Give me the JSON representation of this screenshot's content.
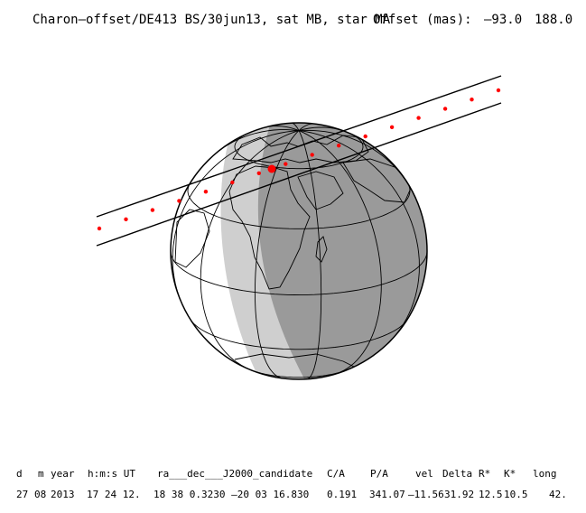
{
  "title": "Charon–offset/DE413 BS/30jun13, sat MB, star MA",
  "offset": {
    "label": "Offset (mas):",
    "values": [
      "–93.0",
      "188.0"
    ]
  },
  "colors": {
    "night": "#9a9a9a",
    "twilight": "#cfcfcf",
    "day": "#ffffff",
    "path_dot": "#ff0000",
    "line": "#000000"
  },
  "globe": {
    "center_lon": 20,
    "center_lat": 20,
    "graticule_step_deg": 30
  },
  "track": {
    "description_visible": false,
    "center_points": [
      {
        "lon": -50,
        "lat": 4
      },
      {
        "lon": -40,
        "lat": 8
      },
      {
        "lon": -30,
        "lat": 12
      },
      {
        "lon": -20,
        "lat": 16
      },
      {
        "lon": -10,
        "lat": 19
      },
      {
        "lon": 0,
        "lat": 22
      },
      {
        "lon": 10,
        "lat": 26
      },
      {
        "lon": 20,
        "lat": 30
      },
      {
        "lon": 30,
        "lat": 34
      },
      {
        "lon": 40,
        "lat": 37
      },
      {
        "lon": 50,
        "lat": 40
      },
      {
        "lon": 60,
        "lat": 43
      },
      {
        "lon": 70,
        "lat": 46
      },
      {
        "lon": 80,
        "lat": 49
      },
      {
        "lon": 90,
        "lat": 52
      },
      {
        "lon": 100,
        "lat": 55
      }
    ],
    "closest_approach": {
      "lon": 22,
      "lat": 30
    }
  },
  "table": {
    "headers": [
      "d",
      "m",
      "year",
      "h:m:s UT",
      "ra___dec___J2000_candidate",
      "C/A",
      "P/A",
      "vel",
      "Delta",
      "R*",
      "K*",
      "long"
    ],
    "values": [
      "27",
      "08",
      "2013",
      "17 24 12.",
      "18 38  0.3230 –20 03  16.830",
      "0.191",
      "341.07",
      "–11.56",
      "31.92",
      "12.5",
      "10.5",
      "42."
    ]
  }
}
